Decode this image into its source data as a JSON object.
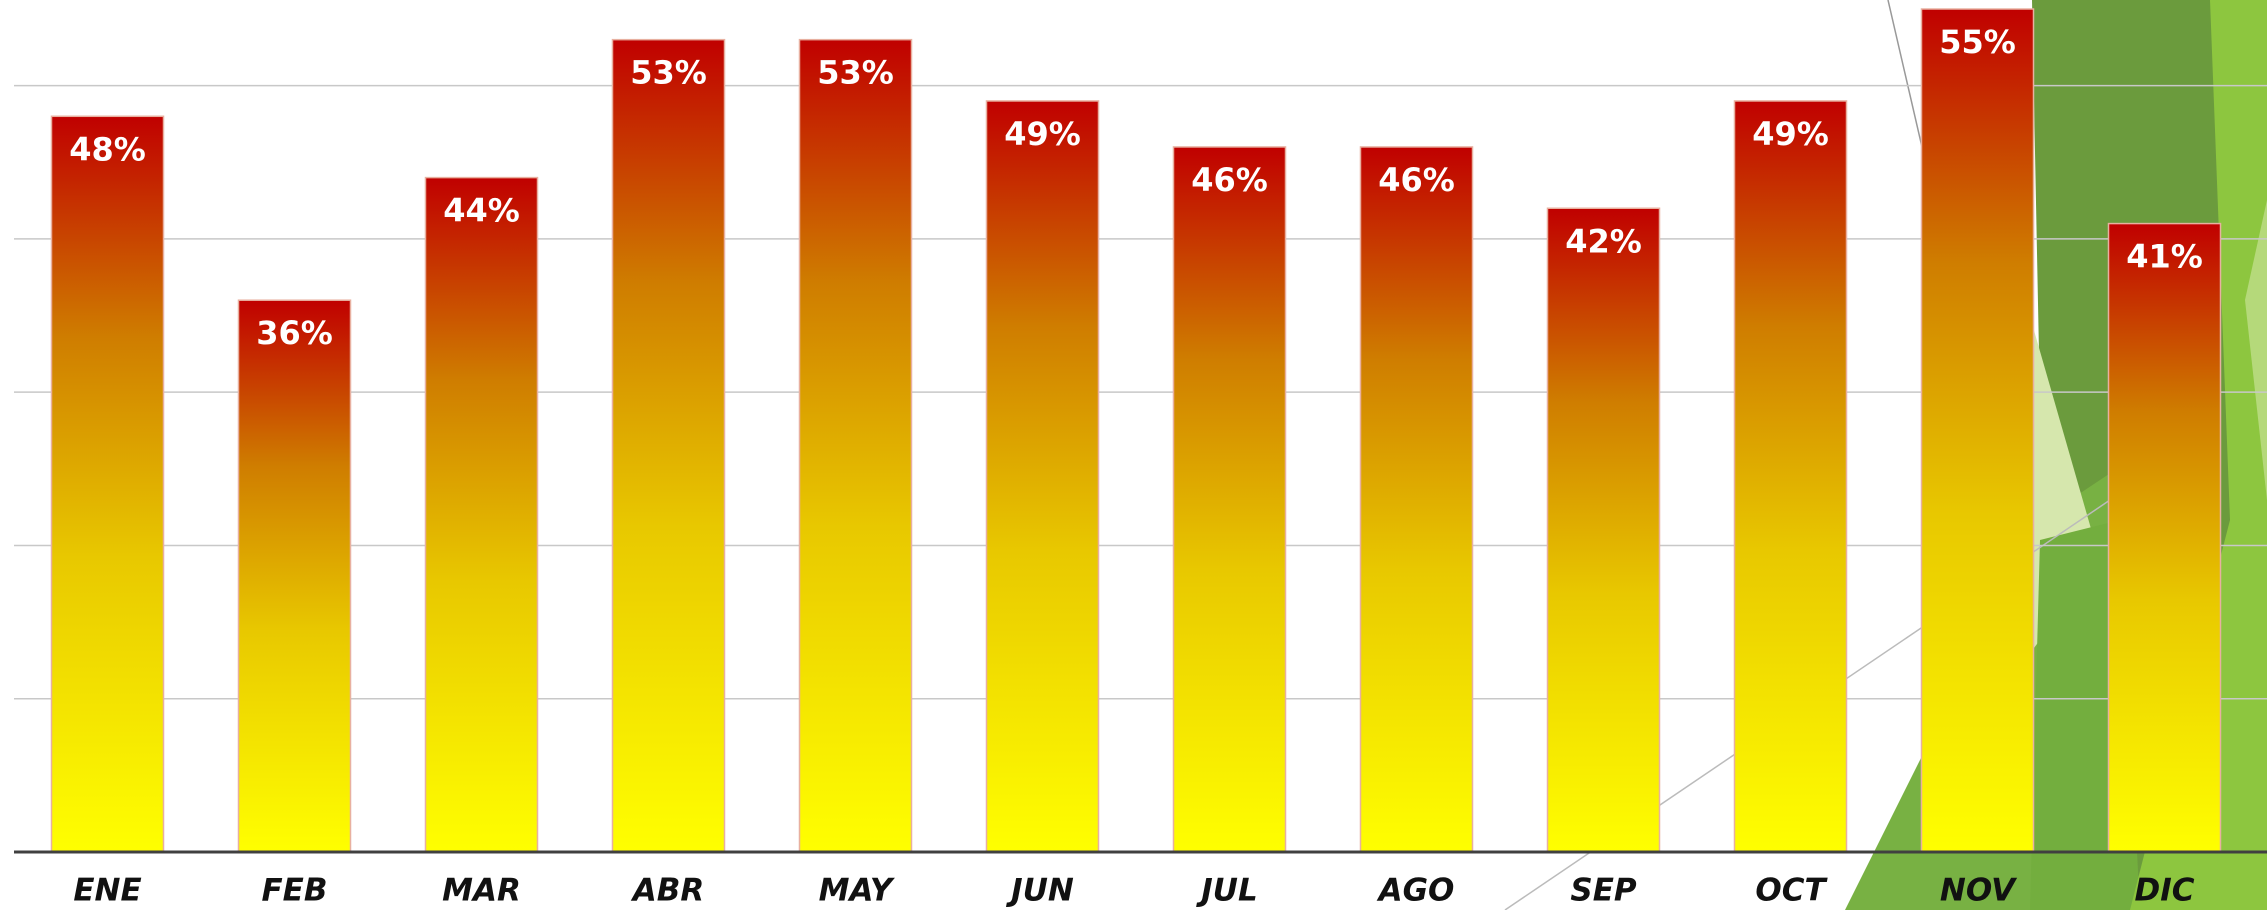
{
  "chart_data": {
    "type": "bar",
    "categories": [
      "ENE",
      "FEB",
      "MAR",
      "ABR",
      "MAY",
      "JUN",
      "JUL",
      "AGO",
      "SEP",
      "OCT",
      "NOV",
      "DIC"
    ],
    "values": [
      48,
      36,
      44,
      53,
      53,
      49,
      46,
      46,
      42,
      49,
      55,
      41
    ],
    "value_labels": [
      "48%",
      "36%",
      "44%",
      "53%",
      "53%",
      "49%",
      "46%",
      "46%",
      "42%",
      "49%",
      "55%",
      "41%"
    ],
    "ylim": [
      0,
      55
    ],
    "yticks": [
      0,
      10,
      20,
      30,
      40,
      50
    ],
    "grid": true
  }
}
